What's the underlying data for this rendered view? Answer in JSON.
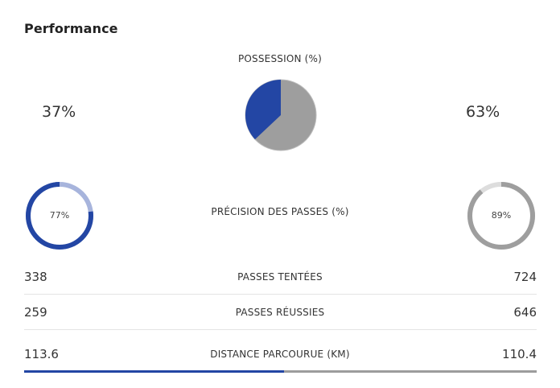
{
  "section": {
    "title": "Performance"
  },
  "possession": {
    "label": "POSSESSION (%)",
    "left_value": "37%",
    "right_value": "63%",
    "left_share": 0.37,
    "right_share": 0.63,
    "left_color": "#2346a4",
    "right_color": "#9e9e9e"
  },
  "pass_accuracy": {
    "label": "PRÉCISION DES PASSES (%)",
    "left_value": "77%",
    "right_value": "89%",
    "left_fraction": 0.77,
    "right_fraction": 0.89,
    "left_color": "#2346a4",
    "left_track_color": "#a7b4dc",
    "right_color": "#9e9e9e",
    "right_track_color": "#dddddd"
  },
  "stats": [
    {
      "label": "PASSES TENTÉES",
      "left": "338",
      "right": "724"
    },
    {
      "label": "PASSES RÉUSSIES",
      "left": "259",
      "right": "646"
    },
    {
      "label": "DISTANCE PARCOURUE (KM)",
      "left": "113.6",
      "right": "110.4"
    }
  ],
  "distance_bar": {
    "left_color": "#2346a4",
    "right_color": "#9c9c9c"
  }
}
